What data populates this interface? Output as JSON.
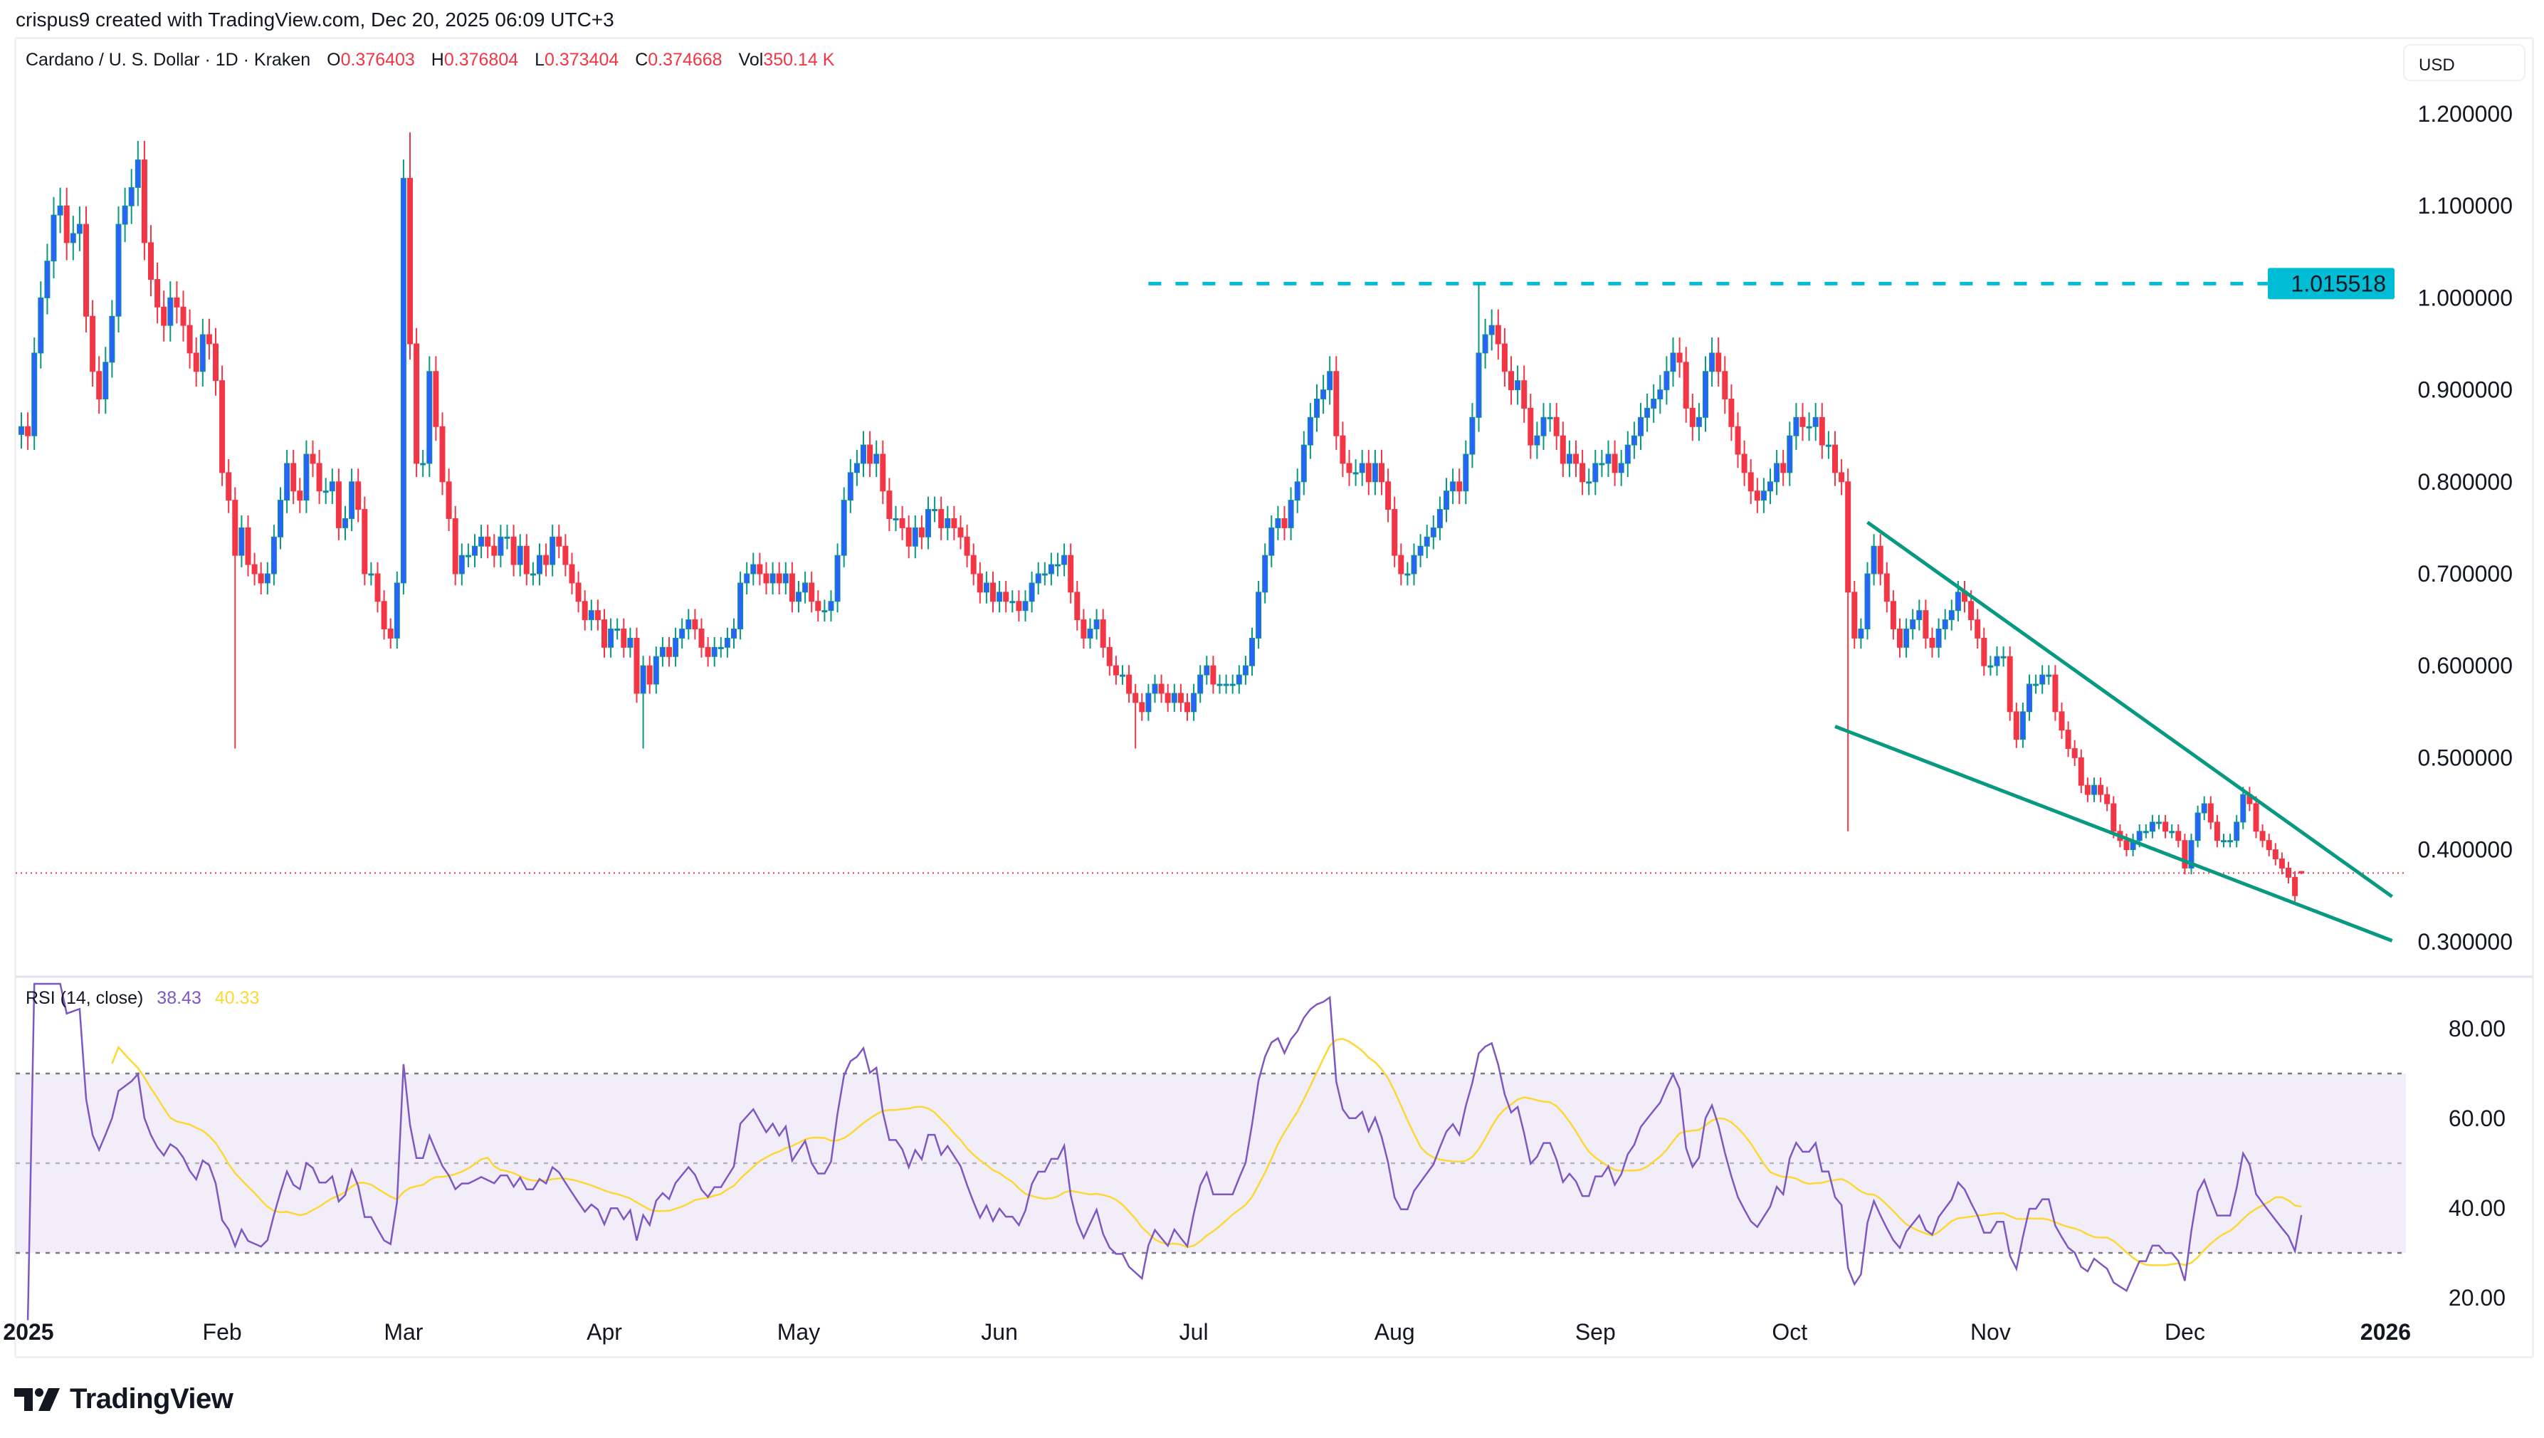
{
  "attribution": "crispus9 created with TradingView.com, Dec 20, 2025 06:09 UTC+3",
  "legend": {
    "symbol": "Cardano / U. S. Dollar · 1D · Kraken",
    "open_label": "O",
    "open": "0.376403",
    "high_label": "H",
    "high": "0.376804",
    "low_label": "L",
    "low": "0.373404",
    "close_label": "C",
    "close": "0.374668",
    "vol_label": "Vol",
    "vol": "350.14 K"
  },
  "currency_button": "USD",
  "rsi_legend": {
    "label": "RSI (14, close)",
    "rsi": "38.43",
    "ma": "40.33"
  },
  "logo_text": "TradingView",
  "colors": {
    "up_body": "#2962ff",
    "up_wick": "#089981",
    "down": "#f23645",
    "level_line": "#00bcd4",
    "trendline": "#089981",
    "rsi": "#7e57c2",
    "rsi_ma": "#fdd835",
    "rsi_band": "#7e57c2"
  },
  "chart_data": [
    {
      "type": "candlestick",
      "start_date": "2025-01-01",
      "interval": "1D",
      "price_axis": {
        "ticks": [
          "1.200000",
          "1.100000",
          "1.000000",
          "0.900000",
          "0.800000",
          "0.700000",
          "0.600000",
          "0.500000",
          "0.400000",
          "0.300000"
        ],
        "range": [
          0.26,
          1.22
        ]
      },
      "time_axis": {
        "ticks": [
          {
            "label": "2025",
            "date": "2025-01-01",
            "bold": true
          },
          {
            "label": "Feb",
            "date": "2025-02-01"
          },
          {
            "label": "Mar",
            "date": "2025-03-01"
          },
          {
            "label": "Apr",
            "date": "2025-04-01"
          },
          {
            "label": "May",
            "date": "2025-05-01"
          },
          {
            "label": "Jun",
            "date": "2025-06-01"
          },
          {
            "label": "Jul",
            "date": "2025-07-01"
          },
          {
            "label": "Aug",
            "date": "2025-08-01"
          },
          {
            "label": "Sep",
            "date": "2025-09-01"
          },
          {
            "label": "Oct",
            "date": "2025-10-01"
          },
          {
            "label": "Nov",
            "date": "2025-11-01"
          },
          {
            "label": "Dec",
            "date": "2025-12-01"
          },
          {
            "label": "2026",
            "date": "2026-01-01",
            "bold": true
          }
        ]
      },
      "closes": [
        0.86,
        0.85,
        0.94,
        1.0,
        1.04,
        1.09,
        1.1,
        1.06,
        1.07,
        1.08,
        0.98,
        0.92,
        0.89,
        0.93,
        0.98,
        1.08,
        1.1,
        1.12,
        1.15,
        1.06,
        1.02,
        0.99,
        0.97,
        1.0,
        0.99,
        0.97,
        0.94,
        0.92,
        0.96,
        0.95,
        0.91,
        0.81,
        0.78,
        0.72,
        0.75,
        0.71,
        0.7,
        0.69,
        0.7,
        0.74,
        0.78,
        0.82,
        0.79,
        0.78,
        0.83,
        0.82,
        0.79,
        0.79,
        0.8,
        0.75,
        0.76,
        0.8,
        0.77,
        0.7,
        0.7,
        0.67,
        0.64,
        0.63,
        0.69,
        1.13,
        0.95,
        0.82,
        0.82,
        0.92,
        0.86,
        0.8,
        0.76,
        0.7,
        0.72,
        0.72,
        0.73,
        0.74,
        0.73,
        0.72,
        0.74,
        0.74,
        0.71,
        0.73,
        0.7,
        0.7,
        0.72,
        0.71,
        0.74,
        0.73,
        0.71,
        0.69,
        0.67,
        0.65,
        0.66,
        0.65,
        0.62,
        0.64,
        0.64,
        0.62,
        0.63,
        0.57,
        0.6,
        0.58,
        0.61,
        0.62,
        0.61,
        0.63,
        0.64,
        0.65,
        0.64,
        0.62,
        0.61,
        0.62,
        0.62,
        0.63,
        0.64,
        0.69,
        0.7,
        0.71,
        0.7,
        0.69,
        0.7,
        0.69,
        0.7,
        0.67,
        0.68,
        0.69,
        0.67,
        0.66,
        0.66,
        0.67,
        0.72,
        0.78,
        0.81,
        0.82,
        0.84,
        0.82,
        0.83,
        0.79,
        0.76,
        0.76,
        0.75,
        0.73,
        0.75,
        0.74,
        0.77,
        0.77,
        0.75,
        0.76,
        0.75,
        0.74,
        0.72,
        0.7,
        0.68,
        0.69,
        0.67,
        0.68,
        0.67,
        0.67,
        0.66,
        0.67,
        0.69,
        0.7,
        0.7,
        0.71,
        0.71,
        0.72,
        0.68,
        0.65,
        0.63,
        0.64,
        0.65,
        0.62,
        0.6,
        0.59,
        0.59,
        0.57,
        0.56,
        0.55,
        0.57,
        0.58,
        0.57,
        0.56,
        0.57,
        0.56,
        0.55,
        0.57,
        0.59,
        0.6,
        0.58,
        0.58,
        0.58,
        0.58,
        0.59,
        0.6,
        0.63,
        0.68,
        0.72,
        0.75,
        0.76,
        0.75,
        0.78,
        0.8,
        0.84,
        0.87,
        0.89,
        0.9,
        0.92,
        0.85,
        0.82,
        0.81,
        0.81,
        0.82,
        0.8,
        0.82,
        0.8,
        0.77,
        0.72,
        0.7,
        0.7,
        0.72,
        0.73,
        0.74,
        0.75,
        0.77,
        0.79,
        0.8,
        0.79,
        0.83,
        0.87,
        0.94,
        0.96,
        0.97,
        0.95,
        0.92,
        0.9,
        0.91,
        0.88,
        0.84,
        0.85,
        0.87,
        0.87,
        0.85,
        0.82,
        0.83,
        0.82,
        0.8,
        0.8,
        0.82,
        0.82,
        0.83,
        0.81,
        0.82,
        0.84,
        0.85,
        0.87,
        0.88,
        0.89,
        0.9,
        0.92,
        0.94,
        0.93,
        0.88,
        0.86,
        0.87,
        0.92,
        0.94,
        0.92,
        0.89,
        0.86,
        0.83,
        0.81,
        0.79,
        0.78,
        0.79,
        0.8,
        0.82,
        0.81,
        0.85,
        0.87,
        0.86,
        0.86,
        0.87,
        0.84,
        0.84,
        0.81,
        0.8,
        0.68,
        0.63,
        0.64,
        0.7,
        0.73,
        0.7,
        0.67,
        0.64,
        0.62,
        0.64,
        0.65,
        0.66,
        0.63,
        0.62,
        0.64,
        0.65,
        0.66,
        0.68,
        0.67,
        0.65,
        0.63,
        0.6,
        0.6,
        0.61,
        0.61,
        0.55,
        0.52,
        0.55,
        0.58,
        0.58,
        0.59,
        0.59,
        0.55,
        0.53,
        0.51,
        0.5,
        0.47,
        0.46,
        0.47,
        0.46,
        0.45,
        0.42,
        0.41,
        0.4,
        0.41,
        0.42,
        0.42,
        0.43,
        0.43,
        0.42,
        0.42,
        0.41,
        0.38,
        0.41,
        0.44,
        0.45,
        0.43,
        0.41,
        0.41,
        0.41,
        0.43,
        0.46,
        0.45,
        0.42,
        0.41,
        0.4,
        0.39,
        0.38,
        0.37,
        0.35,
        0.374668
      ],
      "notable_wicks": [
        {
          "date": "2025-02-03",
          "low": 0.51
        },
        {
          "date": "2025-03-02",
          "high": 1.18
        },
        {
          "date": "2025-04-07",
          "low": 0.51
        },
        {
          "date": "2025-06-22",
          "low": 0.51
        },
        {
          "date": "2025-08-14",
          "high": 1.015518
        },
        {
          "date": "2025-10-10",
          "low": 0.42
        }
      ],
      "last_candle": {
        "open": 0.376403,
        "high": 0.376804,
        "low": 0.373404,
        "close": 0.374668
      },
      "horizontal_level": {
        "price": 1.015518,
        "label": "1.015518",
        "from_date": "2025-06-24"
      },
      "current_price": 0.374668,
      "trendlines": [
        {
          "from": {
            "date": "2025-10-13",
            "price": 0.756
          },
          "to": {
            "date": "2026-01-02",
            "price": 0.349
          }
        },
        {
          "from": {
            "date": "2025-10-08",
            "price": 0.534
          },
          "to": {
            "date": "2026-01-02",
            "price": 0.301
          }
        }
      ]
    },
    {
      "type": "line",
      "title": "RSI (14, close)",
      "series": [
        {
          "name": "RSI",
          "period": 14,
          "last": 38.43
        },
        {
          "name": "RSI-based MA",
          "period": 14,
          "last": 40.33
        }
      ],
      "y_axis": {
        "ticks": [
          "80.00",
          "60.00",
          "40.00",
          "20.00"
        ],
        "range": [
          20,
          80
        ]
      },
      "bands": {
        "upper": 70,
        "middle": 50,
        "lower": 30
      }
    }
  ]
}
